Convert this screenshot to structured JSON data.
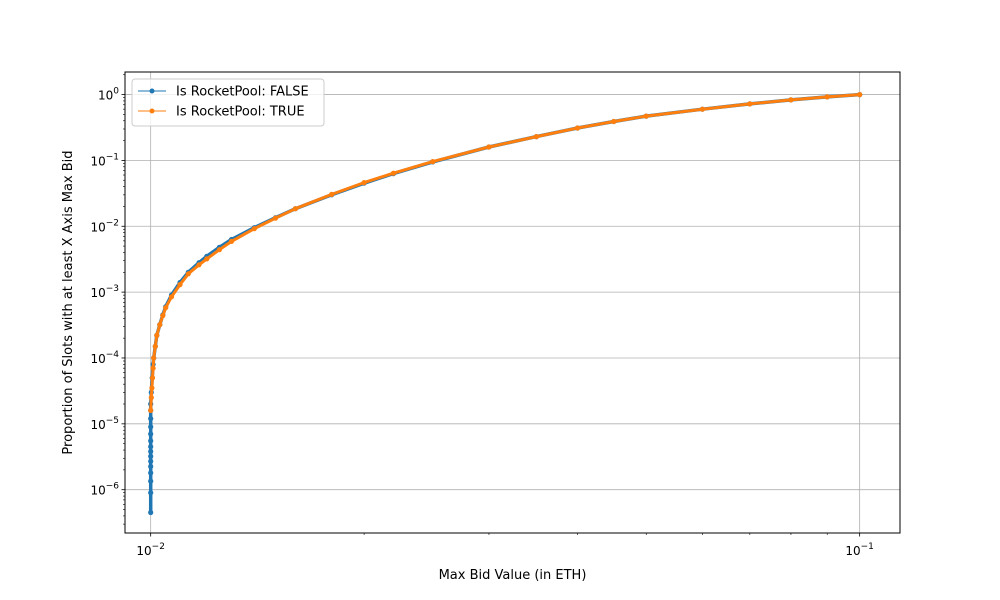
{
  "chart_data": {
    "type": "line",
    "xlabel": "Max Bid Value (in ETH)",
    "ylabel": "Proportion of Slots with at least X Axis Max Bid",
    "xscale": "log",
    "yscale": "log",
    "xlim": [
      0.0092,
      0.114
    ],
    "ylim": [
      2.2e-07,
      2.2
    ],
    "xticks": [
      {
        "value": 0.01,
        "base": "10",
        "exp": "−2"
      },
      {
        "value": 0.1,
        "base": "10",
        "exp": "−1"
      }
    ],
    "yticks": [
      {
        "value": 1e-06,
        "base": "10",
        "exp": "−6"
      },
      {
        "value": 1e-05,
        "base": "10",
        "exp": "−5"
      },
      {
        "value": 0.0001,
        "base": "10",
        "exp": "−4"
      },
      {
        "value": 0.001,
        "base": "10",
        "exp": "−3"
      },
      {
        "value": 0.01,
        "base": "10",
        "exp": "−2"
      },
      {
        "value": 0.1,
        "base": "10",
        "exp": "−1"
      },
      {
        "value": 1,
        "base": "10",
        "exp": "0"
      }
    ],
    "grid": true,
    "legend_position": "top-left",
    "series": [
      {
        "name": "Is RocketPool: FALSE",
        "color": "#1f77b4",
        "marker": "circle",
        "points": [
          [
            0.01,
            4.5e-07
          ],
          [
            0.01,
            9e-07
          ],
          [
            0.01,
            1.35e-06
          ],
          [
            0.01,
            1.8e-06
          ],
          [
            0.01,
            2.25e-06
          ],
          [
            0.01,
            2.7e-06
          ],
          [
            0.01,
            3.2e-06
          ],
          [
            0.01,
            3.8e-06
          ],
          [
            0.01,
            4.5e-06
          ],
          [
            0.01,
            5.5e-06
          ],
          [
            0.01,
            7e-06
          ],
          [
            0.01,
            9e-06
          ],
          [
            0.01,
            1.2e-05
          ],
          [
            0.01,
            1.6e-05
          ],
          [
            0.01,
            2e-05
          ],
          [
            0.01002,
            3e-05
          ],
          [
            0.01005,
            5e-05
          ],
          [
            0.01008,
            8e-05
          ],
          [
            0.0101,
            0.0001
          ],
          [
            0.01015,
            0.00015
          ],
          [
            0.0102,
            0.00022
          ],
          [
            0.0103,
            0.00032
          ],
          [
            0.0104,
            0.00045
          ],
          [
            0.0105,
            0.0006
          ],
          [
            0.0107,
            0.0009
          ],
          [
            0.011,
            0.0014
          ],
          [
            0.0113,
            0.002
          ],
          [
            0.0117,
            0.0028
          ],
          [
            0.012,
            0.0035
          ],
          [
            0.0125,
            0.0048
          ],
          [
            0.013,
            0.0063
          ],
          [
            0.014,
            0.0095
          ],
          [
            0.015,
            0.0135
          ],
          [
            0.016,
            0.0185
          ],
          [
            0.018,
            0.03
          ],
          [
            0.02,
            0.045
          ],
          [
            0.022,
            0.063
          ],
          [
            0.025,
            0.095
          ],
          [
            0.03,
            0.16
          ],
          [
            0.035,
            0.23
          ],
          [
            0.04,
            0.31
          ],
          [
            0.045,
            0.39
          ],
          [
            0.05,
            0.47
          ],
          [
            0.06,
            0.6
          ],
          [
            0.07,
            0.72
          ],
          [
            0.08,
            0.83
          ],
          [
            0.09,
            0.92
          ],
          [
            0.1,
            1
          ]
        ]
      },
      {
        "name": "Is RocketPool: TRUE",
        "color": "#ff7f0e",
        "marker": "circle",
        "points": [
          [
            0.01,
            1.6e-05
          ],
          [
            0.01002,
            2.5e-05
          ],
          [
            0.01004,
            3.5e-05
          ],
          [
            0.01006,
            5e-05
          ],
          [
            0.01008,
            7e-05
          ],
          [
            0.0101,
            0.0001
          ],
          [
            0.01015,
            0.00015
          ],
          [
            0.0102,
            0.00022
          ],
          [
            0.0103,
            0.00032
          ],
          [
            0.0104,
            0.00044
          ],
          [
            0.0105,
            0.00058
          ],
          [
            0.0107,
            0.00085
          ],
          [
            0.011,
            0.0013
          ],
          [
            0.0113,
            0.0019
          ],
          [
            0.0117,
            0.0026
          ],
          [
            0.012,
            0.0032
          ],
          [
            0.0125,
            0.0044
          ],
          [
            0.013,
            0.0059
          ],
          [
            0.014,
            0.0092
          ],
          [
            0.015,
            0.0133
          ],
          [
            0.016,
            0.0185
          ],
          [
            0.018,
            0.0305
          ],
          [
            0.02,
            0.046
          ],
          [
            0.022,
            0.064
          ],
          [
            0.025,
            0.096
          ],
          [
            0.03,
            0.16
          ],
          [
            0.035,
            0.23
          ],
          [
            0.04,
            0.31
          ],
          [
            0.045,
            0.39
          ],
          [
            0.05,
            0.47
          ],
          [
            0.06,
            0.6
          ],
          [
            0.07,
            0.72
          ],
          [
            0.08,
            0.83
          ],
          [
            0.09,
            0.92
          ],
          [
            0.1,
            1
          ]
        ]
      }
    ]
  }
}
